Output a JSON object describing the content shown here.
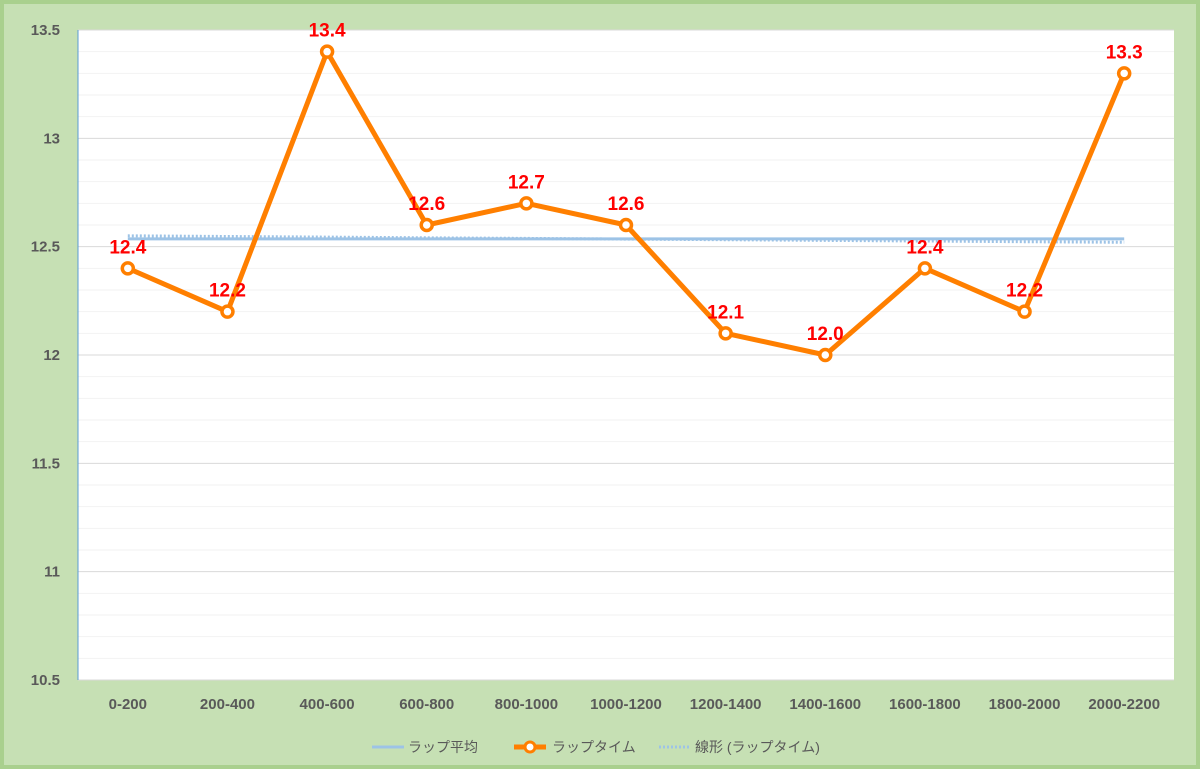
{
  "chart_data": {
    "type": "line",
    "categories": [
      "0-200",
      "200-400",
      "400-600",
      "600-800",
      "800-1000",
      "1000-1200",
      "1200-1400",
      "1400-1600",
      "1600-1800",
      "1800-2000",
      "2000-2200"
    ],
    "ylim": [
      10.5,
      13.5
    ],
    "y_ticks": [
      "10.5",
      "11",
      "11.5",
      "12",
      "12.5",
      "13",
      "13.5"
    ],
    "grid": true,
    "legend_position": "bottom",
    "series": [
      {
        "name": "ラップ平均",
        "type": "line",
        "color": "#9dc3e6",
        "values": [
          12.536,
          12.536,
          12.536,
          12.536,
          12.536,
          12.536,
          12.536,
          12.536,
          12.536,
          12.536,
          12.536
        ]
      },
      {
        "name": "ラップタイム",
        "type": "line-markers",
        "color": "#ff7f00",
        "values": [
          12.4,
          12.2,
          13.4,
          12.6,
          12.7,
          12.6,
          12.1,
          12.0,
          12.4,
          12.2,
          13.3
        ],
        "data_labels": [
          "12.4",
          "12.2",
          "13.4",
          "12.6",
          "12.7",
          "12.6",
          "12.1",
          "12.0",
          "12.4",
          "12.2",
          "13.3"
        ],
        "label_color": "#ff0000"
      },
      {
        "name": "線形 (ラップタイム)",
        "type": "trendline",
        "color": "#9dc3e6",
        "values": [
          12.55,
          12.547,
          12.544,
          12.541,
          12.538,
          12.535,
          12.532,
          12.529,
          12.526,
          12.523,
          12.52
        ]
      }
    ]
  }
}
